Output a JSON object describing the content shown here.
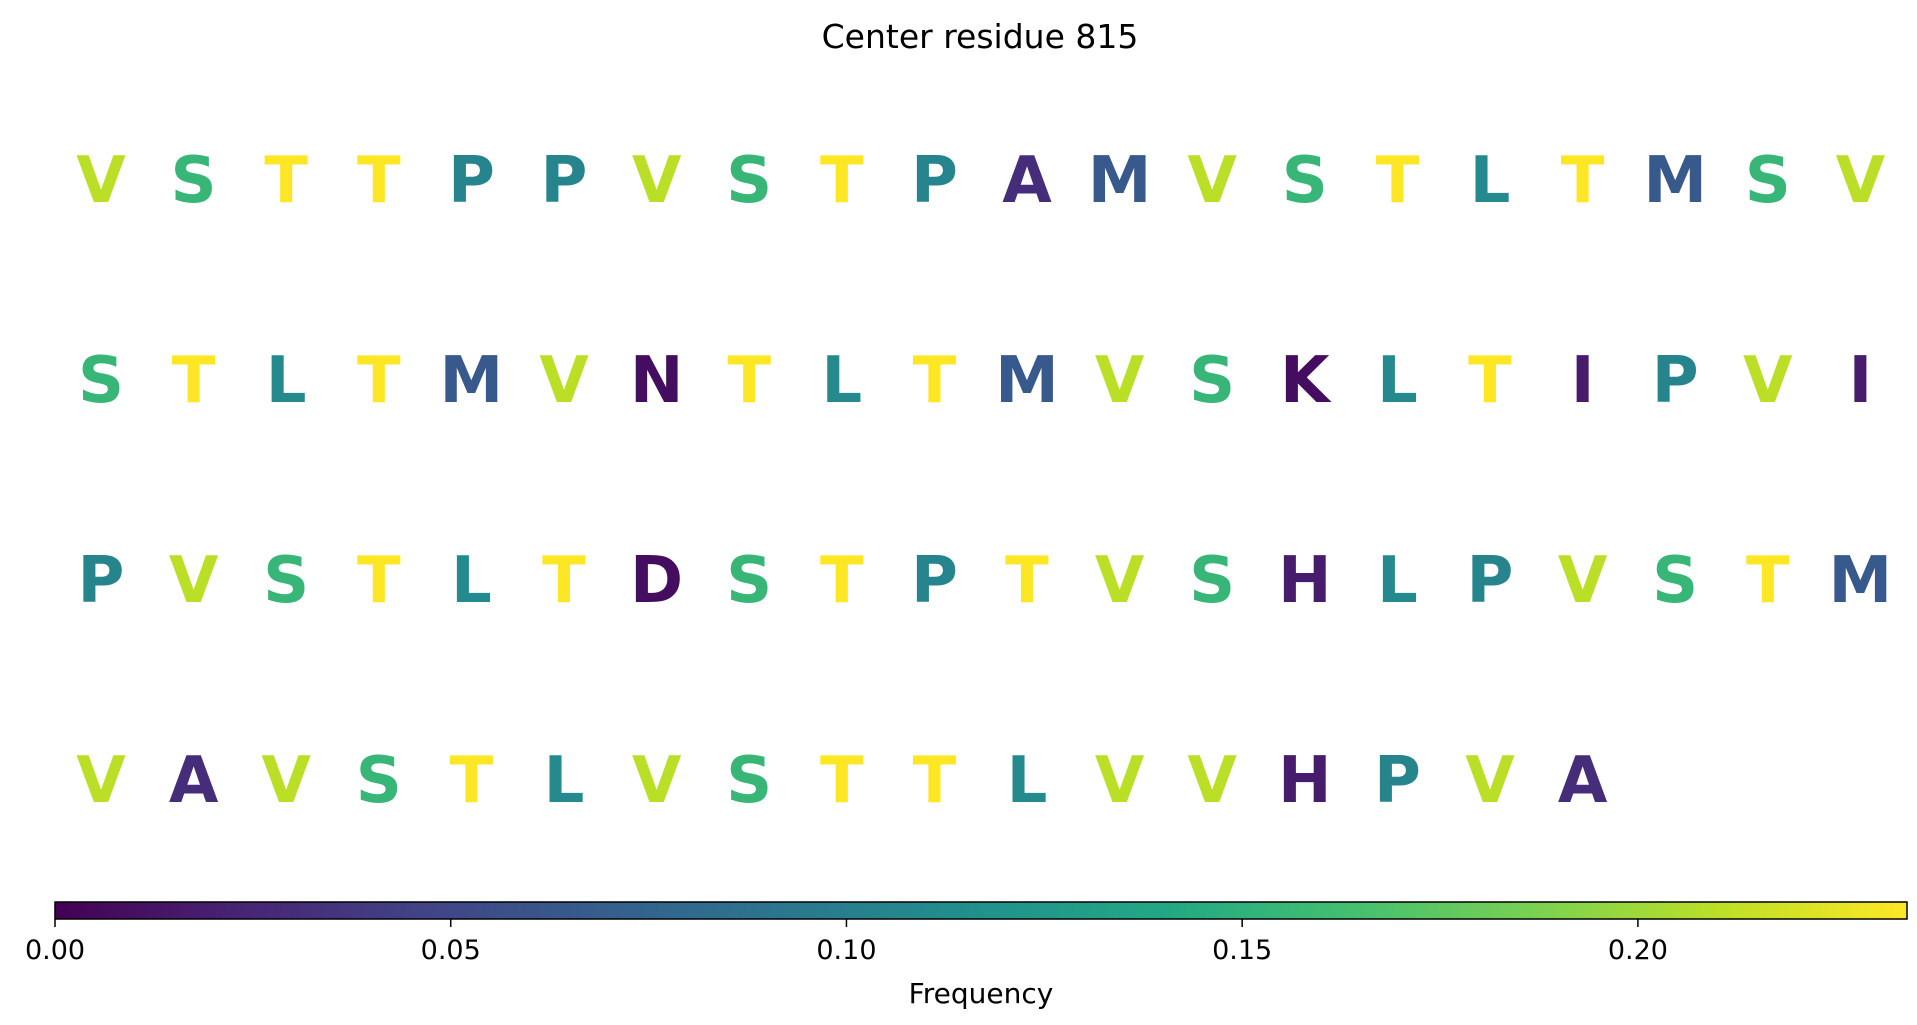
{
  "chart_data": {
    "type": "sequence-logo-grid",
    "title": "Center residue 815",
    "colormap": "viridis",
    "colorbar": {
      "label": "Frequency",
      "range": [
        0.0,
        0.234
      ],
      "ticks": [
        0.0,
        0.05,
        0.1,
        0.15,
        0.2
      ],
      "tick_labels": [
        "0.00",
        "0.05",
        "0.10",
        "0.15",
        "0.20"
      ],
      "placement": "bottom"
    },
    "columns_per_row": 20,
    "residues": [
      {
        "letter": "V",
        "frequency": 0.21
      },
      {
        "letter": "S",
        "frequency": 0.155
      },
      {
        "letter": "T",
        "frequency": 0.234
      },
      {
        "letter": "T",
        "frequency": 0.234
      },
      {
        "letter": "P",
        "frequency": 0.105
      },
      {
        "letter": "P",
        "frequency": 0.105
      },
      {
        "letter": "V",
        "frequency": 0.21
      },
      {
        "letter": "S",
        "frequency": 0.155
      },
      {
        "letter": "T",
        "frequency": 0.234
      },
      {
        "letter": "P",
        "frequency": 0.105
      },
      {
        "letter": "A",
        "frequency": 0.03
      },
      {
        "letter": "M",
        "frequency": 0.065
      },
      {
        "letter": "V",
        "frequency": 0.21
      },
      {
        "letter": "S",
        "frequency": 0.155
      },
      {
        "letter": "T",
        "frequency": 0.234
      },
      {
        "letter": "L",
        "frequency": 0.11
      },
      {
        "letter": "T",
        "frequency": 0.234
      },
      {
        "letter": "M",
        "frequency": 0.065
      },
      {
        "letter": "S",
        "frequency": 0.155
      },
      {
        "letter": "V",
        "frequency": 0.21
      },
      {
        "letter": "S",
        "frequency": 0.155
      },
      {
        "letter": "T",
        "frequency": 0.234
      },
      {
        "letter": "L",
        "frequency": 0.11
      },
      {
        "letter": "T",
        "frequency": 0.234
      },
      {
        "letter": "M",
        "frequency": 0.065
      },
      {
        "letter": "V",
        "frequency": 0.21
      },
      {
        "letter": "N",
        "frequency": 0.008
      },
      {
        "letter": "T",
        "frequency": 0.234
      },
      {
        "letter": "L",
        "frequency": 0.11
      },
      {
        "letter": "T",
        "frequency": 0.234
      },
      {
        "letter": "M",
        "frequency": 0.065
      },
      {
        "letter": "V",
        "frequency": 0.21
      },
      {
        "letter": "S",
        "frequency": 0.155
      },
      {
        "letter": "K",
        "frequency": 0.008
      },
      {
        "letter": "L",
        "frequency": 0.11
      },
      {
        "letter": "T",
        "frequency": 0.234
      },
      {
        "letter": "I",
        "frequency": 0.018
      },
      {
        "letter": "P",
        "frequency": 0.105
      },
      {
        "letter": "V",
        "frequency": 0.21
      },
      {
        "letter": "I",
        "frequency": 0.018
      },
      {
        "letter": "P",
        "frequency": 0.105
      },
      {
        "letter": "V",
        "frequency": 0.21
      },
      {
        "letter": "S",
        "frequency": 0.155
      },
      {
        "letter": "T",
        "frequency": 0.234
      },
      {
        "letter": "L",
        "frequency": 0.11
      },
      {
        "letter": "T",
        "frequency": 0.234
      },
      {
        "letter": "D",
        "frequency": 0.008
      },
      {
        "letter": "S",
        "frequency": 0.155
      },
      {
        "letter": "T",
        "frequency": 0.234
      },
      {
        "letter": "P",
        "frequency": 0.105
      },
      {
        "letter": "T",
        "frequency": 0.234
      },
      {
        "letter": "V",
        "frequency": 0.21
      },
      {
        "letter": "S",
        "frequency": 0.155
      },
      {
        "letter": "H",
        "frequency": 0.018
      },
      {
        "letter": "L",
        "frequency": 0.11
      },
      {
        "letter": "P",
        "frequency": 0.105
      },
      {
        "letter": "V",
        "frequency": 0.21
      },
      {
        "letter": "S",
        "frequency": 0.155
      },
      {
        "letter": "T",
        "frequency": 0.234
      },
      {
        "letter": "M",
        "frequency": 0.065
      },
      {
        "letter": "V",
        "frequency": 0.21
      },
      {
        "letter": "A",
        "frequency": 0.03
      },
      {
        "letter": "V",
        "frequency": 0.21
      },
      {
        "letter": "S",
        "frequency": 0.155
      },
      {
        "letter": "T",
        "frequency": 0.234
      },
      {
        "letter": "L",
        "frequency": 0.11
      },
      {
        "letter": "V",
        "frequency": 0.21
      },
      {
        "letter": "S",
        "frequency": 0.155
      },
      {
        "letter": "T",
        "frequency": 0.234
      },
      {
        "letter": "T",
        "frequency": 0.234
      },
      {
        "letter": "L",
        "frequency": 0.11
      },
      {
        "letter": "V",
        "frequency": 0.21
      },
      {
        "letter": "V",
        "frequency": 0.21
      },
      {
        "letter": "H",
        "frequency": 0.018
      },
      {
        "letter": "P",
        "frequency": 0.105
      },
      {
        "letter": "V",
        "frequency": 0.21
      },
      {
        "letter": "A",
        "frequency": 0.03
      }
    ]
  }
}
